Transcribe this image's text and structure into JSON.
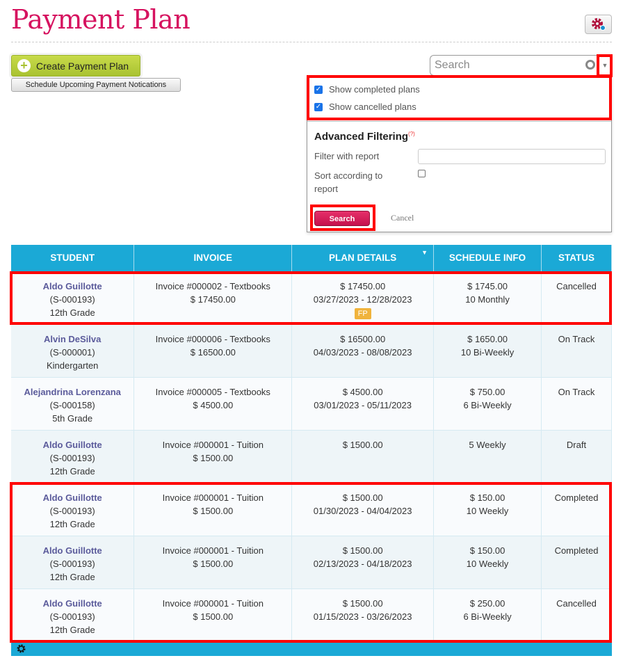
{
  "page": {
    "title": "Payment Plan",
    "settings_icon": "gear-icon"
  },
  "actions": {
    "create": "Create Payment Plan",
    "schedule": "Schedule Upcoming Payment Notications"
  },
  "search": {
    "placeholder": "Search"
  },
  "filter_panel": {
    "show_completed": {
      "label": "Show completed plans",
      "checked": true
    },
    "show_cancelled": {
      "label": "Show cancelled plans",
      "checked": true
    },
    "advanced_title": "Advanced Filtering",
    "help": "(?)",
    "filter_report_label": "Filter with report",
    "filter_report_value": "",
    "sort_report_label": "Sort according to report",
    "sort_report_checked": false,
    "search_button": "Search",
    "cancel_button": "Cancel"
  },
  "table": {
    "headers": [
      "STUDENT",
      "INVOICE",
      "PLAN DETAILS",
      "SCHEDULE INFO",
      "STATUS"
    ],
    "rows": [
      {
        "name": "Aldo Guillotte",
        "id": "(S-000193)",
        "grade": "12th Grade",
        "invoice": "Invoice #000002 - Textbooks",
        "inv_amount": "$ 17450.00",
        "plan_amount": "$ 17450.00",
        "plan_dates": "03/27/2023 - 12/28/2023",
        "badge": "FP",
        "sched_amount": "$ 1745.00",
        "sched_freq": "10 Monthly",
        "status": "Cancelled"
      },
      {
        "name": "Alvin DeSilva",
        "id": "(S-000001)",
        "grade": "Kindergarten",
        "invoice": "Invoice #000006 - Textbooks",
        "inv_amount": "$ 16500.00",
        "plan_amount": "$ 16500.00",
        "plan_dates": "04/03/2023 - 08/08/2023",
        "sched_amount": "$ 1650.00",
        "sched_freq": "10 Bi-Weekly",
        "status": "On Track"
      },
      {
        "name": "Alejandrina Lorenzana",
        "id": "(S-000158)",
        "grade": "5th Grade",
        "invoice": "Invoice #000005 - Textbooks",
        "inv_amount": "$ 4500.00",
        "plan_amount": "$ 4500.00",
        "plan_dates": "03/01/2023 - 05/11/2023",
        "sched_amount": "$ 750.00",
        "sched_freq": "6 Bi-Weekly",
        "status": "On Track"
      },
      {
        "name": "Aldo Guillotte",
        "id": "(S-000193)",
        "grade": "12th Grade",
        "invoice": "Invoice #000001 - Tuition",
        "inv_amount": "$ 1500.00",
        "plan_amount": "$ 1500.00",
        "plan_dates": "",
        "sched_amount": "5 Weekly",
        "sched_freq": "",
        "status": "Draft"
      },
      {
        "name": "Aldo Guillotte",
        "id": "(S-000193)",
        "grade": "12th Grade",
        "invoice": "Invoice #000001 - Tuition",
        "inv_amount": "$ 1500.00",
        "plan_amount": "$ 1500.00",
        "plan_dates": "01/30/2023 - 04/04/2023",
        "sched_amount": "$ 150.00",
        "sched_freq": "10 Weekly",
        "status": "Completed"
      },
      {
        "name": "Aldo Guillotte",
        "id": "(S-000193)",
        "grade": "12th Grade",
        "invoice": "Invoice #000001 - Tuition",
        "inv_amount": "$ 1500.00",
        "plan_amount": "$ 1500.00",
        "plan_dates": "02/13/2023 - 04/18/2023",
        "sched_amount": "$ 150.00",
        "sched_freq": "10 Weekly",
        "status": "Completed"
      },
      {
        "name": "Aldo Guillotte",
        "id": "(S-000193)",
        "grade": "12th Grade",
        "invoice": "Invoice #000001 - Tuition",
        "inv_amount": "$ 1500.00",
        "plan_amount": "$ 1500.00",
        "plan_dates": "01/15/2023 - 03/26/2023",
        "sched_amount": "$ 250.00",
        "sched_freq": "6 Bi-Weekly",
        "status": "Cancelled"
      }
    ]
  }
}
